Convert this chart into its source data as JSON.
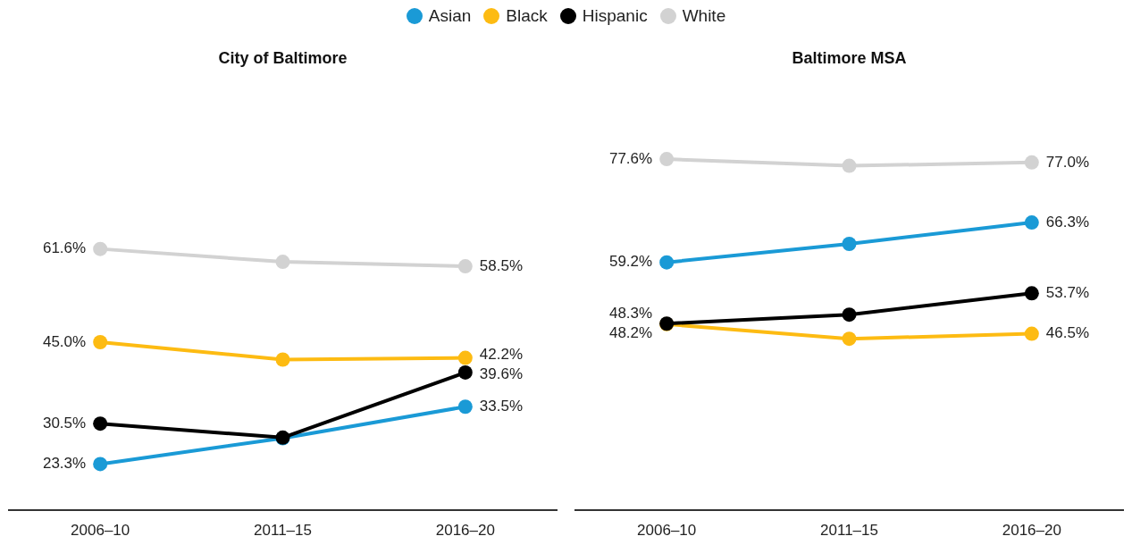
{
  "chart_data": [
    {
      "type": "line",
      "title": "City of Baltimore",
      "categories": [
        "2006–10",
        "2011–15",
        "2016–20"
      ],
      "legend": "top",
      "grid": false,
      "marker": "circle",
      "line_style": "solid",
      "series": [
        {
          "name": "Asian",
          "color": "#1a9ad6",
          "values": [
            23.3,
            27.9,
            33.5
          ],
          "value_labels": [
            "23.3%",
            null,
            "33.5%"
          ]
        },
        {
          "name": "Black",
          "color": "#fdbb12",
          "values": [
            45.0,
            41.9,
            42.2
          ],
          "value_labels": [
            "45.0%",
            null,
            "42.2%"
          ]
        },
        {
          "name": "Hispanic",
          "color": "#000000",
          "values": [
            30.5,
            28.0,
            39.6
          ],
          "value_labels": [
            "30.5%",
            null,
            "39.6%"
          ]
        },
        {
          "name": "White",
          "color": "#d2d2d2",
          "values": [
            61.6,
            59.3,
            58.5
          ],
          "value_labels": [
            "61.6%",
            null,
            "58.5%"
          ]
        }
      ]
    },
    {
      "type": "line",
      "title": "Baltimore MSA",
      "categories": [
        "2006–10",
        "2011–15",
        "2016–20"
      ],
      "grid": false,
      "marker": "circle",
      "line_style": "solid",
      "series": [
        {
          "color": "#1a9ad6",
          "values": [
            59.2,
            62.5,
            66.3
          ],
          "value_labels": [
            "59.2%",
            null,
            "66.3%"
          ]
        },
        {
          "color": "#fdbb12",
          "values": [
            48.2,
            45.6,
            46.5
          ],
          "value_labels": [
            "48.2%",
            null,
            "46.5%"
          ]
        },
        {
          "color": "#000000",
          "values": [
            48.3,
            49.9,
            53.7
          ],
          "value_labels": [
            "48.3%",
            null,
            "53.7%"
          ]
        },
        {
          "color": "#d2d2d2",
          "values": [
            77.6,
            76.4,
            77.0
          ],
          "value_labels": [
            "77.6%",
            null,
            "77.0%"
          ]
        }
      ]
    }
  ]
}
